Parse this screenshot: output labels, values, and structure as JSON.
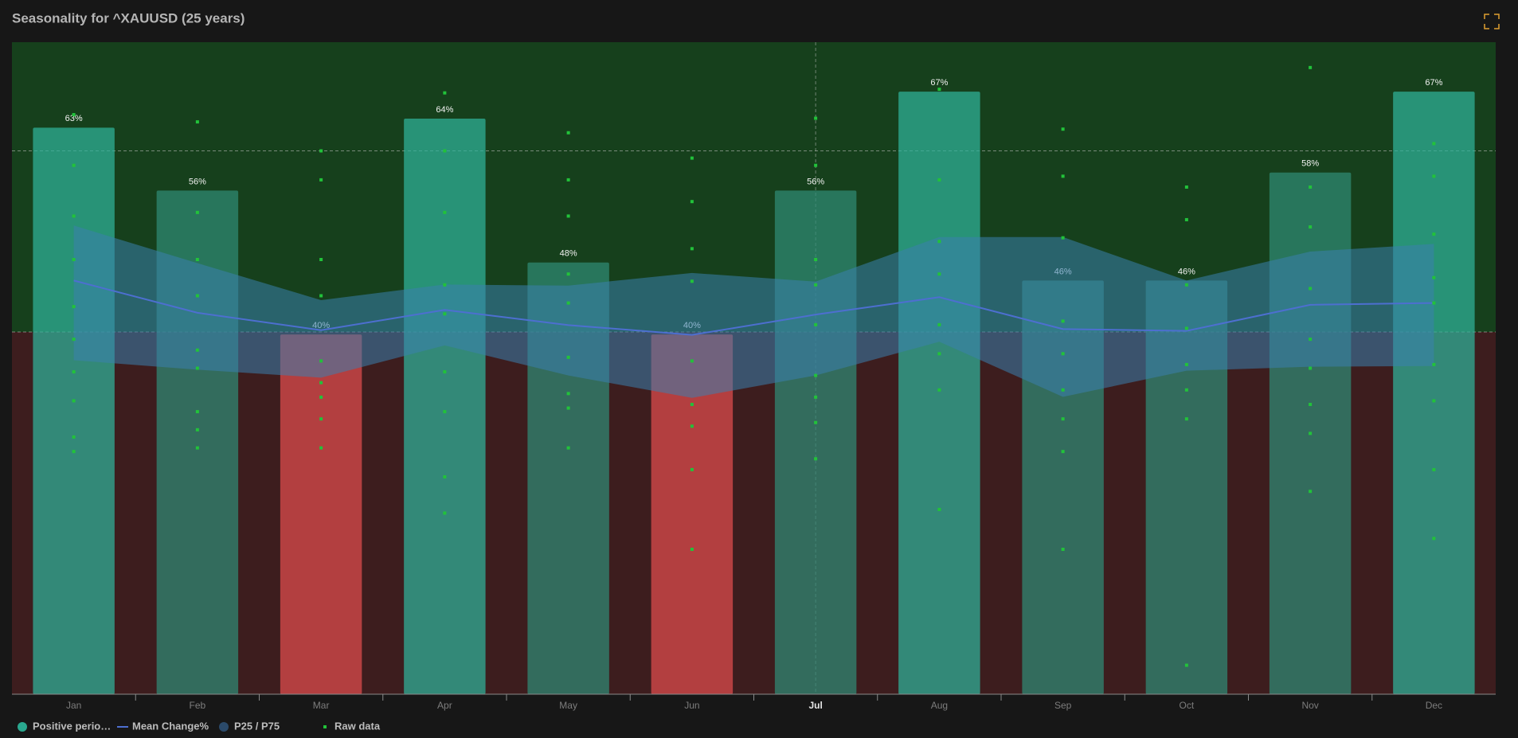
{
  "chart_data": {
    "type": "bar",
    "title": "Seasonality for ^XAUUSD (25 years)",
    "categories": [
      "Jan",
      "Feb",
      "Mar",
      "Apr",
      "May",
      "Jun",
      "Jul",
      "Aug",
      "Sep",
      "Oct",
      "Nov",
      "Dec"
    ],
    "ylim": [
      0,
      72.5
    ],
    "y2lim": [
      -10,
      8
    ],
    "y2_reference_lines": [
      0,
      5
    ],
    "highlight_category": 6,
    "series": [
      {
        "name": "Positive perio…",
        "color": "#2aa88f",
        "values": [
          63,
          56,
          40,
          64,
          48,
          40,
          56,
          67,
          46,
          46,
          58,
          67
        ],
        "value_labels": [
          "63%",
          "56%",
          "40%",
          "64%",
          "48%",
          "40%",
          "56%",
          "67%",
          "46%",
          "46%",
          "58%",
          "67%"
        ],
        "colors": [
          "#2fb39b",
          "#2f8a76",
          "#e04c4d",
          "#2fb39b",
          "#2f8a76",
          "#e04c4d",
          "#2f8a76",
          "#2fb39b",
          "#2f8a76",
          "#2f8a76",
          "#2f8a76",
          "#2fb39b"
        ]
      },
      {
        "name": "Mean Change%",
        "color": "#4d6fd0",
        "axis": "y2",
        "values": [
          1.42,
          0.53,
          0.05,
          0.61,
          0.19,
          -0.08,
          0.48,
          0.96,
          0.08,
          0.03,
          0.75,
          0.8
        ]
      },
      {
        "name": "P25 / P75",
        "color": "#3a7fae",
        "axis": "y2",
        "p25": [
          -0.78,
          -1.04,
          -1.26,
          -0.37,
          -1.2,
          -1.82,
          -1.2,
          -0.27,
          -1.79,
          -1.07,
          -0.96,
          -0.94
        ],
        "p75": [
          2.94,
          1.9,
          0.88,
          1.31,
          1.28,
          1.63,
          1.39,
          2.62,
          2.62,
          1.42,
          2.22,
          2.43
        ]
      },
      {
        "name": "Raw data",
        "color": "#22c23a",
        "axis": "y2",
        "values": [
          [
            6.0,
            4.6,
            3.2,
            2.0,
            0.7,
            -0.2,
            -1.1,
            -1.9,
            -2.9,
            -3.3
          ],
          [
            5.8,
            3.3,
            2.0,
            1.0,
            -0.5,
            -1.0,
            -2.2,
            -2.7,
            -3.2
          ],
          [
            5.0,
            4.2,
            2.0,
            1.0,
            -0.8,
            -1.4,
            -1.8,
            -2.4,
            -3.2
          ],
          [
            6.6,
            5.0,
            3.3,
            1.3,
            0.5,
            -1.1,
            -2.2,
            -4.0,
            -5.0
          ],
          [
            5.5,
            4.2,
            3.2,
            1.6,
            0.8,
            -0.7,
            -1.7,
            -2.1,
            -3.2
          ],
          [
            4.8,
            3.6,
            2.3,
            1.4,
            -0.8,
            -2.0,
            -2.6,
            -3.8,
            -6.0
          ],
          [
            5.9,
            4.6,
            2.0,
            1.3,
            0.2,
            -1.2,
            -1.8,
            -2.5,
            -3.5
          ],
          [
            6.7,
            4.2,
            2.5,
            1.6,
            0.2,
            -0.6,
            -1.6,
            -4.9
          ],
          [
            5.6,
            4.3,
            2.6,
            0.3,
            -0.6,
            -1.6,
            -2.4,
            -3.3,
            -6.0
          ],
          [
            4.0,
            3.1,
            1.3,
            0.1,
            -0.9,
            -1.6,
            -2.4,
            -9.2
          ],
          [
            7.3,
            4.0,
            2.9,
            1.2,
            -0.2,
            -1.0,
            -2.0,
            -2.8,
            -4.4
          ],
          [
            5.2,
            4.3,
            2.7,
            1.5,
            0.8,
            -0.9,
            -1.9,
            -3.8,
            -5.7
          ]
        ]
      }
    ]
  }
}
